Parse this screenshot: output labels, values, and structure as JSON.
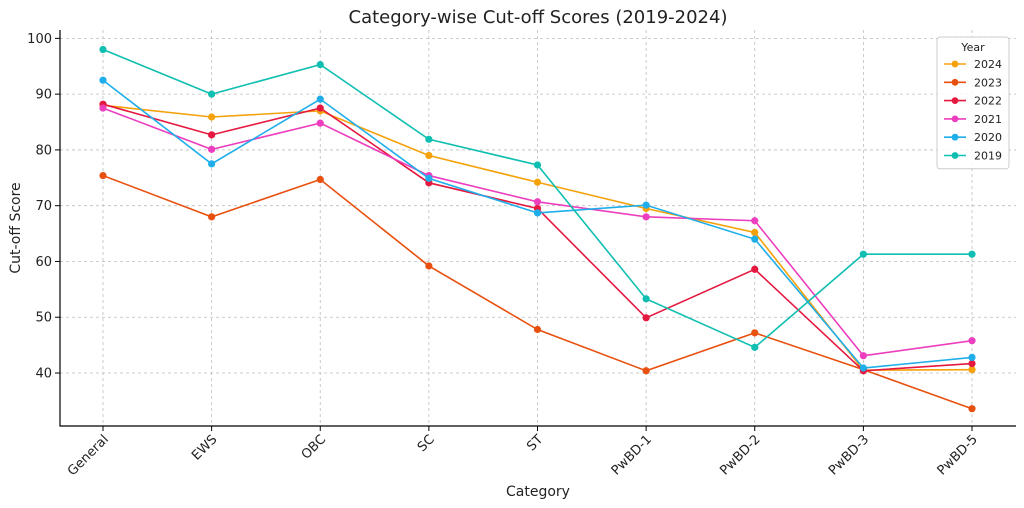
{
  "chart_data": {
    "type": "line",
    "title": "Category-wise Cut-off Scores (2019-2024)",
    "xlabel": "Category",
    "ylabel": "Cut-off Score",
    "categories": [
      "General",
      "EWS",
      "OBC",
      "SC",
      "ST",
      "PwBD-1",
      "PwBD-2",
      "PwBD-3",
      "PwBD-5"
    ],
    "ylim": [
      30.5,
      101.5
    ],
    "yticks": [
      40,
      50,
      60,
      70,
      80,
      90,
      100
    ],
    "grid": true,
    "legend": {
      "title": "Year",
      "placement": "top-right"
    },
    "series": [
      {
        "name": "2024",
        "color": "#F5A10A",
        "values": [
          88.0,
          85.9,
          87.0,
          79.0,
          74.2,
          69.5,
          65.2,
          40.5,
          40.6
        ]
      },
      {
        "name": "2023",
        "color": "#E8500F",
        "values": [
          75.4,
          68.0,
          74.7,
          59.2,
          47.8,
          40.4,
          47.2,
          40.6,
          33.6
        ]
      },
      {
        "name": "2022",
        "color": "#E5183F",
        "values": [
          88.2,
          82.7,
          87.5,
          74.1,
          69.5,
          49.9,
          58.6,
          40.4,
          41.7
        ]
      },
      {
        "name": "2021",
        "color": "#EC3EBE",
        "values": [
          87.5,
          80.1,
          84.8,
          75.4,
          70.7,
          68.0,
          67.3,
          43.1,
          45.8
        ]
      },
      {
        "name": "2020",
        "color": "#1FAEEA",
        "values": [
          92.5,
          77.5,
          89.1,
          74.9,
          68.7,
          70.1,
          64.0,
          40.9,
          42.8
        ]
      },
      {
        "name": "2019",
        "color": "#10BFB1",
        "values": [
          98.0,
          90.0,
          95.3,
          81.9,
          77.3,
          53.3,
          44.6,
          61.3,
          61.3
        ]
      }
    ]
  }
}
